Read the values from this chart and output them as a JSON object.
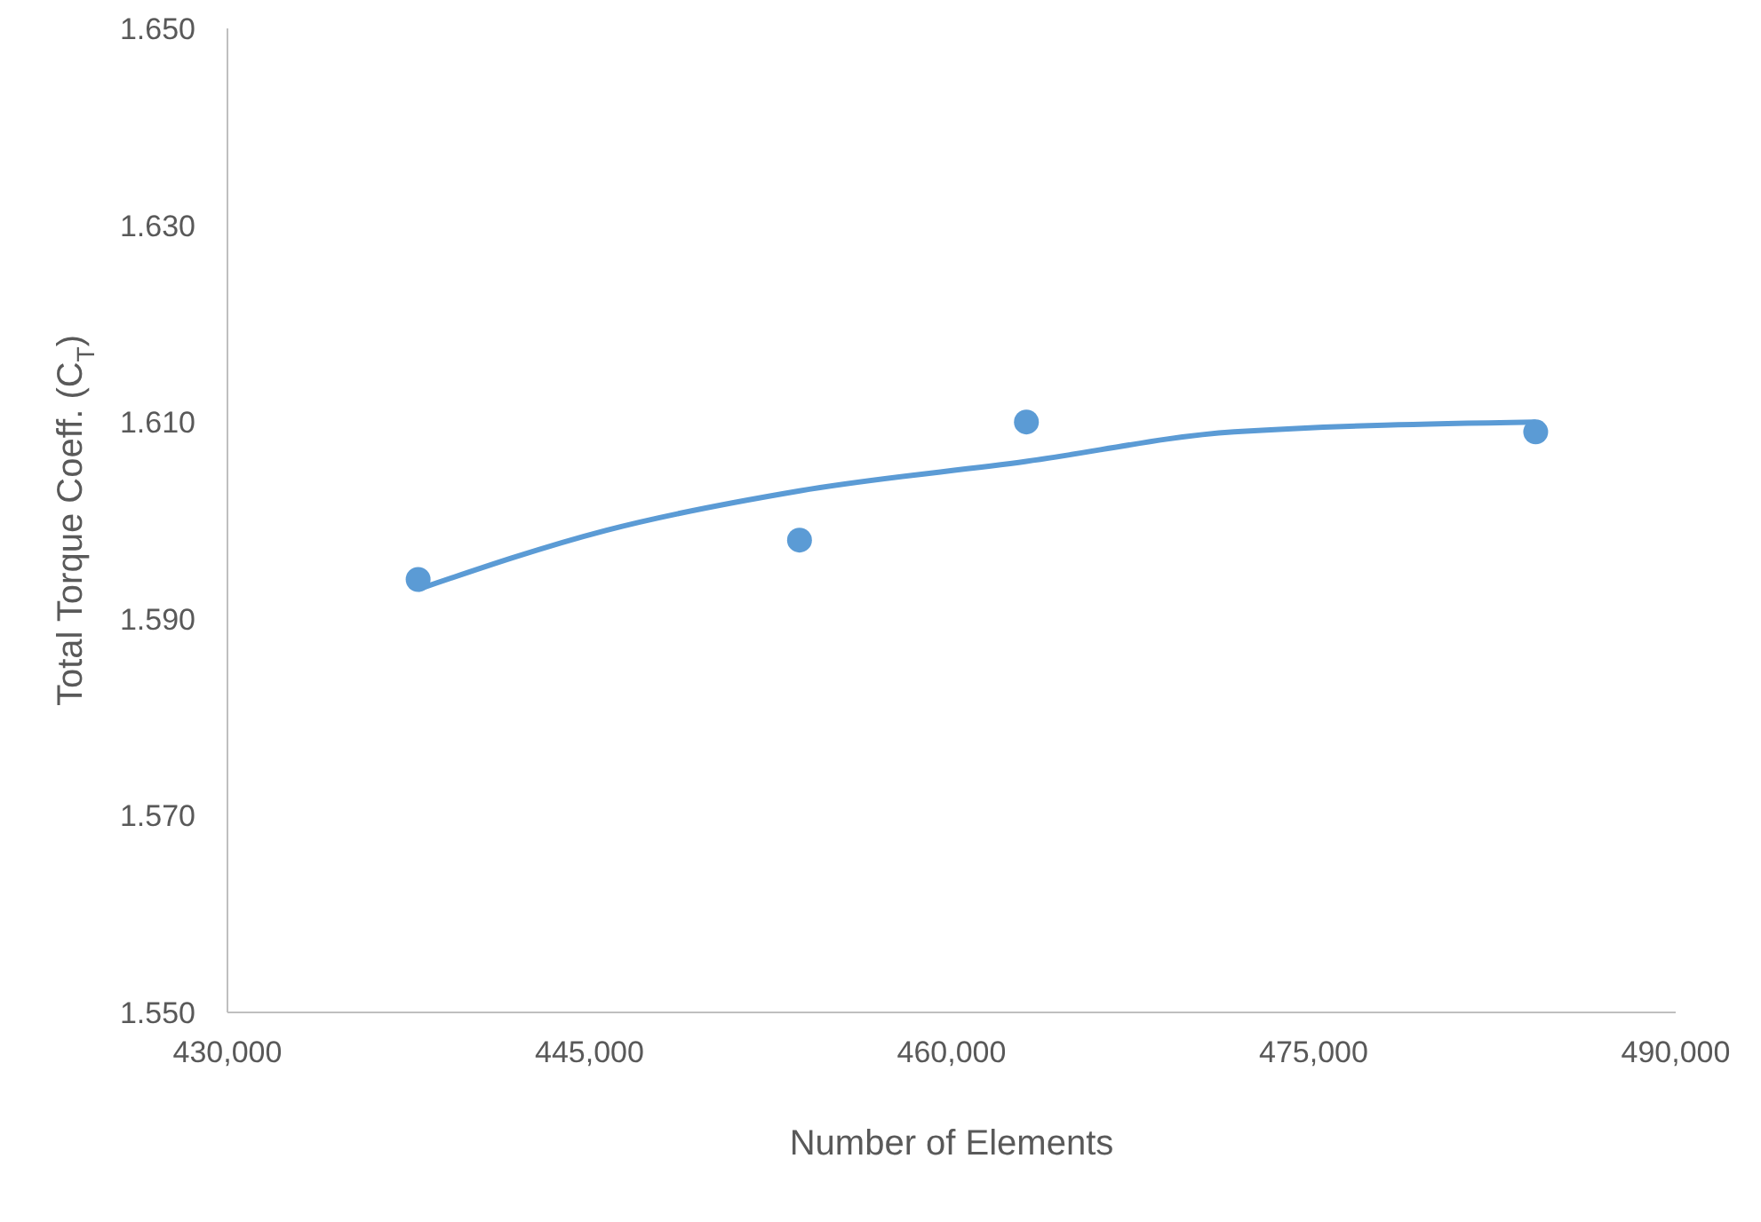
{
  "chart_data": {
    "type": "scatter",
    "xlabel": "Number of Elements",
    "ylabel": "Total Torque Coeff. (C$_{T}$)",
    "xlim": [
      430000,
      490000
    ],
    "xticks": [
      {
        "value": 430000,
        "label": "430,000"
      },
      {
        "value": 445000,
        "label": "445,000"
      },
      {
        "value": 460000,
        "label": "460,000"
      },
      {
        "value": 475000,
        "label": "475,000"
      },
      {
        "value": 490000,
        "label": "490,000"
      }
    ],
    "ylim": [
      1.55,
      1.65
    ],
    "yticks": [
      {
        "value": 1.55,
        "label": "1.550"
      },
      {
        "value": 1.57,
        "label": "1.570"
      },
      {
        "value": 1.59,
        "label": "1.590"
      },
      {
        "value": 1.61,
        "label": "1.610"
      },
      {
        "value": 1.63,
        "label": "1.630"
      },
      {
        "value": 1.65,
        "label": "1.650"
      }
    ],
    "grid": false,
    "marker": "circle",
    "series": [
      {
        "color": "#5b9bd5",
        "x": [
          437900,
          453700,
          463100,
          484200
        ],
        "values": [
          1.594,
          1.598,
          1.61,
          1.609
        ]
      },
      {
        "type": "line",
        "color": "#5b9bd5",
        "marker": "none",
        "x": [
          437900,
          445700,
          453700,
          463100,
          471700,
          484200
        ],
        "values": [
          1.593,
          1.599,
          1.603,
          1.606,
          1.609,
          1.61
        ]
      }
    ]
  }
}
